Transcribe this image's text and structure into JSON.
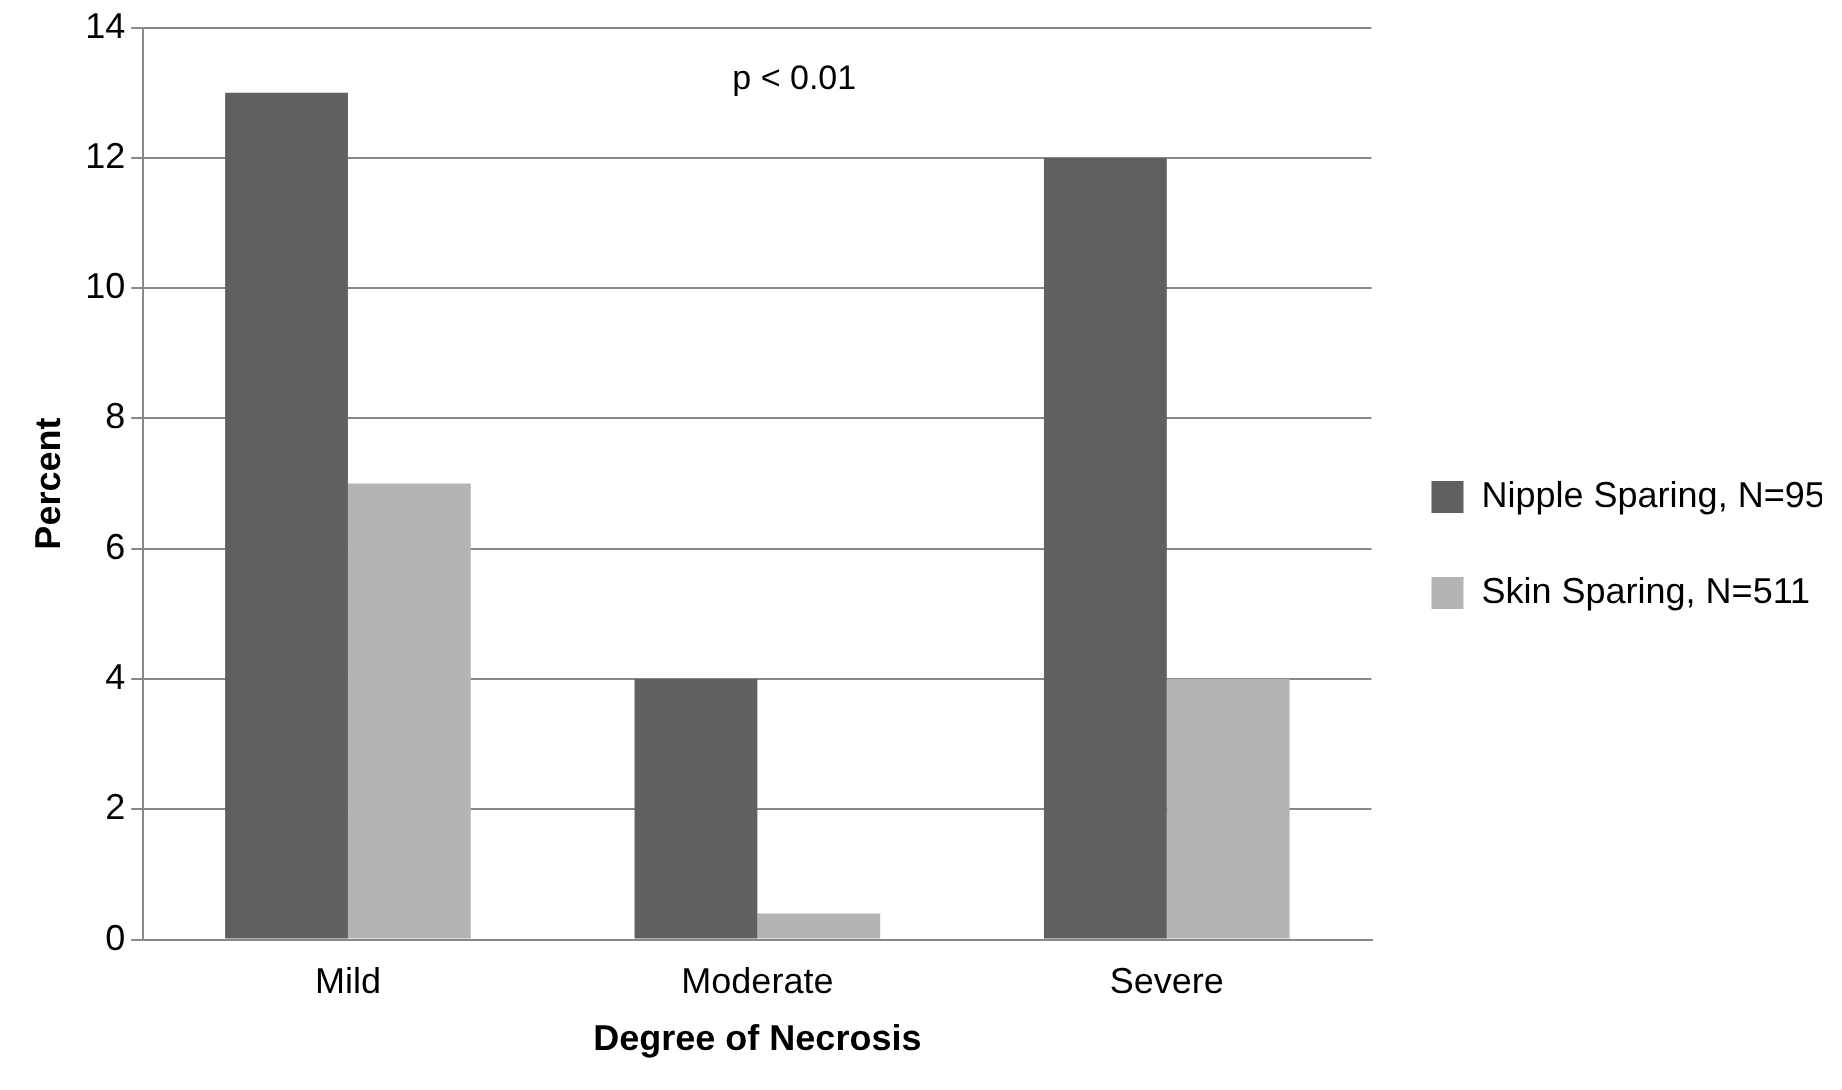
{
  "chart_data": {
    "type": "bar",
    "xlabel": "Degree of Necrosis",
    "ylabel": "Percent",
    "categories": [
      "Mild",
      "Moderate",
      "Severe"
    ],
    "series": [
      {
        "name": "Nipple Sparing, N=95",
        "color": "#606060",
        "values": [
          13,
          4,
          12
        ]
      },
      {
        "name": "Skin Sparing, N=511",
        "color": "#b4b4b4",
        "values": [
          7,
          0.4,
          4
        ]
      }
    ],
    "ylim": [
      0,
      14
    ],
    "yticks": [
      0,
      2,
      4,
      6,
      8,
      10,
      12,
      14
    ],
    "grid": "y",
    "legend": "right",
    "annotations": [
      "p < 0.01"
    ]
  }
}
